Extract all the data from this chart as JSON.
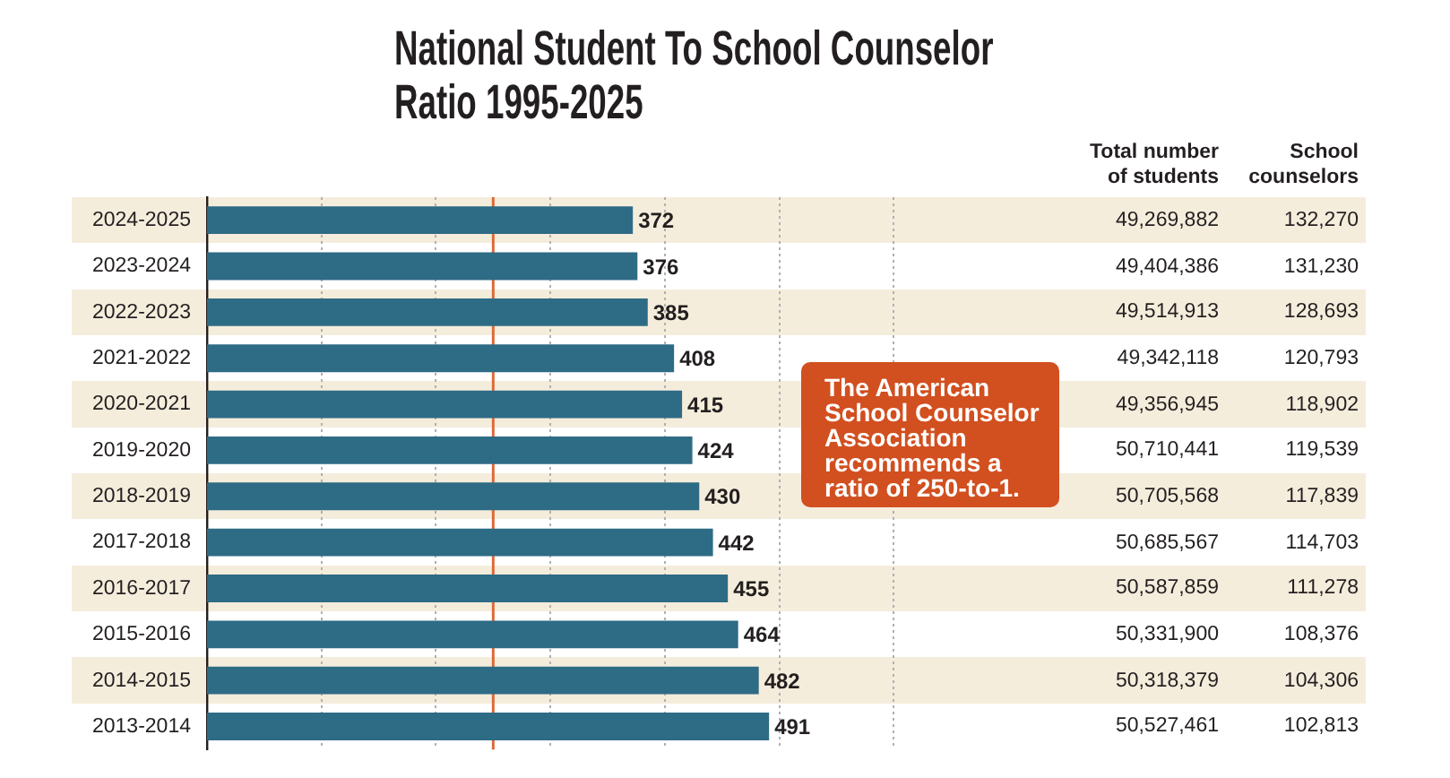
{
  "chart_data": [
    {
      "type": "bar",
      "title": "National Student To School Counselor Ratio 1995-2025",
      "orientation": "horizontal",
      "categories": [
        "2024-2025",
        "2023-2024",
        "2022-2023",
        "2021-2022",
        "2020-2021",
        "2019-2020",
        "2018-2019",
        "2017-2018",
        "2016-2017",
        "2015-2016",
        "2014-2015",
        "2013-2014"
      ],
      "values": [
        372,
        376,
        385,
        408,
        415,
        424,
        430,
        442,
        455,
        464,
        482,
        491
      ],
      "color": "#2e6b85",
      "xlim": [
        0,
        600
      ],
      "xticks": [
        {
          "value": 100,
          "label": null
        },
        {
          "value": 200,
          "label": null
        },
        {
          "value": 300,
          "label": null
        },
        {
          "value": 400,
          "label": null
        },
        {
          "value": 500,
          "label": null
        },
        {
          "value": 600,
          "label": null
        }
      ],
      "tick_labels": "y",
      "grid": "x",
      "data_labels": true,
      "ref_lines": [
        {
          "axis": "x",
          "value": 250,
          "color": "#dd6a3a"
        }
      ],
      "annotations": [
        "The American School Counselor Association recommends a ratio of 250-to-1."
      ]
    },
    {
      "type": "other",
      "title": "Total number of students",
      "categories": [
        null,
        null,
        null,
        null,
        null,
        null,
        null,
        null,
        null,
        null,
        null,
        null
      ],
      "values": [
        49269882,
        49404386,
        49514913,
        49342118,
        49356945,
        50710441,
        50705568,
        50685567,
        50587859,
        50331900,
        50318379,
        50527461
      ],
      "value_labels": [
        "49,269,882",
        "49,404,386",
        "49,514,913",
        "49,342,118",
        "49,356,945",
        "50,710,441",
        "50,705,568",
        "50,685,567",
        "50,587,859",
        "50,331,900",
        "50,318,379",
        "50,527,461"
      ]
    },
    {
      "type": "other",
      "title": "School counselors",
      "categories": [
        null,
        null,
        null,
        null,
        null,
        null,
        null,
        null,
        null,
        null,
        null,
        null
      ],
      "values": [
        132270,
        131230,
        128693,
        120793,
        118902,
        119539,
        117839,
        114703,
        111278,
        108376,
        104306,
        102813
      ],
      "value_labels": [
        "132,270",
        "131,230",
        "128,693",
        "120,793",
        "118,902",
        "119,539",
        "117,839",
        "114,703",
        "111,278",
        "108,376",
        "104,306",
        "102,813"
      ]
    }
  ]
}
